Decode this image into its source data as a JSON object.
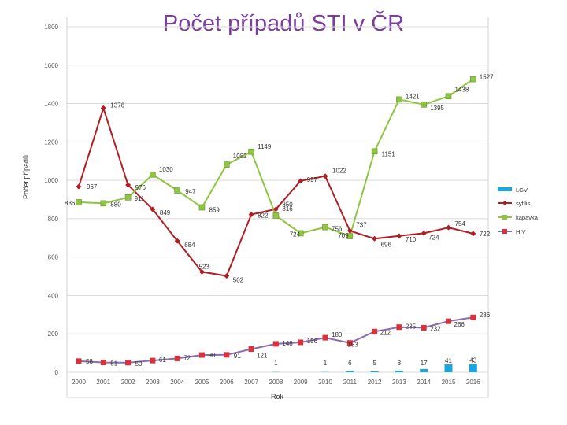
{
  "title": "Počet případů STI v ČR",
  "chart_data": {
    "type": "line",
    "title": "Počet případů STI v ČR",
    "xlabel": "Rok",
    "ylabel": "Počet případů",
    "ylim": [
      0,
      1800
    ],
    "yticks": [
      "0",
      "200",
      "400",
      "600",
      "800",
      "1000",
      "1200",
      "1400",
      "1600",
      "1800"
    ],
    "categories": [
      "2000",
      "2001",
      "2002",
      "2003",
      "2004",
      "2005",
      "2006",
      "2007",
      "2008",
      "2009",
      "2010",
      "2011",
      "2012",
      "2013",
      "2014",
      "2015",
      "2016"
    ],
    "grid": true,
    "legend_position": "right",
    "series": [
      {
        "name": "LGV",
        "kind": "bar",
        "color": "#1aa7e0",
        "values": [
          null,
          null,
          null,
          null,
          null,
          null,
          null,
          null,
          1,
          null,
          1,
          6,
          5,
          8,
          17,
          41,
          43
        ],
        "labels": [
          "",
          "",
          "",
          "",
          "",
          "",
          "",
          "",
          "1",
          "",
          "1",
          "6",
          "5",
          "8",
          "17",
          "41",
          "43"
        ]
      },
      {
        "name": "syfilis",
        "kind": "line",
        "color": "#b01e24",
        "marker": "diamond",
        "values": [
          967,
          1376,
          976,
          849,
          684,
          523,
          502,
          822,
          850,
          997,
          1022,
          737,
          696,
          710,
          724,
          754,
          722
        ],
        "labels": [
          "967",
          "1376",
          "976",
          "849",
          "684",
          "523",
          "502",
          "822",
          "850",
          "997",
          "1022",
          "737",
          "696",
          "710",
          "724",
          "754",
          "722"
        ]
      },
      {
        "name": "kapavka",
        "kind": "line",
        "color": "#8dc63f",
        "marker": "square",
        "values": [
          886,
          880,
          911,
          1030,
          947,
          859,
          1082,
          1149,
          816,
          724,
          756,
          709,
          1151,
          1421,
          1395,
          1438,
          1527
        ],
        "labels": [
          "886",
          "880",
          "911",
          "1030",
          "947",
          "859",
          "1082",
          "1149",
          "816",
          "724",
          "756",
          "709",
          "1151",
          "1421",
          "1395",
          "1438",
          "1527"
        ]
      },
      {
        "name": "HIV",
        "kind": "line",
        "color": "#8c6bb1",
        "marker": "square",
        "marker_color": "#d9323a",
        "values": [
          58,
          51,
          50,
          61,
          72,
          90,
          91,
          121,
          148,
          156,
          180,
          153,
          212,
          235,
          232,
          266,
          286
        ],
        "labels": [
          "58",
          "51",
          "50",
          "61",
          "72",
          "90",
          "91",
          "121",
          "148",
          "156",
          "180",
          "153",
          "212",
          "235",
          "232",
          "266",
          "286"
        ]
      }
    ]
  }
}
